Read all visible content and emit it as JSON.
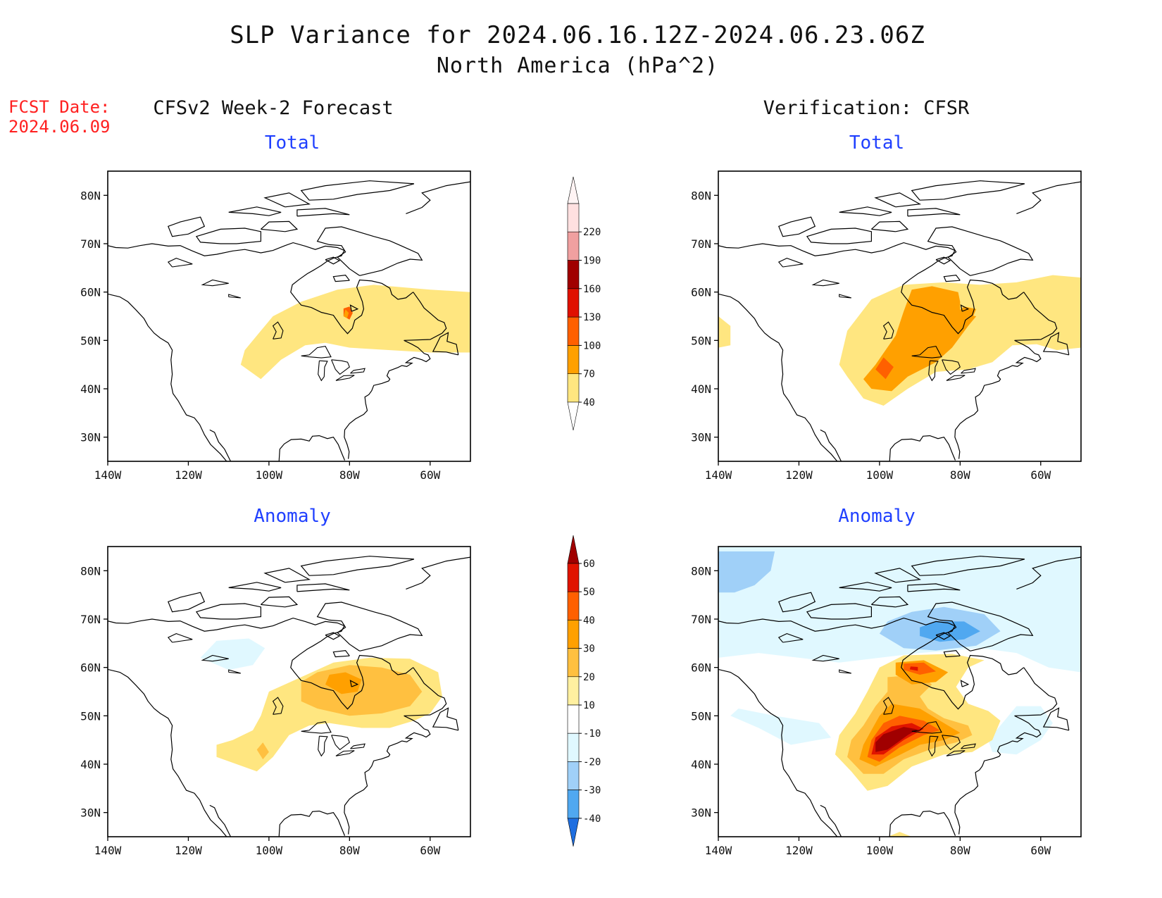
{
  "title": {
    "line1": "SLP Variance for 2024.06.16.12Z-2024.06.23.06Z",
    "line2": "North America (hPa^2)"
  },
  "fcst": {
    "label": "FCST Date:",
    "date": "2024.06.09"
  },
  "columns": {
    "left": {
      "heading": "CFSv2 Week-2 Forecast"
    },
    "right": {
      "heading": "Verification: CFSR"
    }
  },
  "panels": [
    {
      "id": "fcst_total",
      "subtitle": "Total"
    },
    {
      "id": "verif_total",
      "subtitle": "Total"
    },
    {
      "id": "fcst_anom",
      "subtitle": "Anomaly"
    },
    {
      "id": "verif_anom",
      "subtitle": "Anomaly"
    }
  ],
  "axes": {
    "lat_labels": [
      "80N",
      "70N",
      "60N",
      "50N",
      "40N",
      "30N"
    ],
    "lat_values": [
      80,
      70,
      60,
      50,
      40,
      30
    ],
    "lon_labels": [
      "140W",
      "120W",
      "100W",
      "80W",
      "60W"
    ],
    "lon_values": [
      -140,
      -120,
      -100,
      -80,
      -60
    ],
    "lon_range": [
      -140,
      -50
    ],
    "lat_range": [
      25,
      85
    ]
  },
  "colorbars": {
    "total": {
      "labels": [
        "40",
        "70",
        "100",
        "130",
        "160",
        "190",
        "220"
      ],
      "colors": [
        "#ffe680",
        "#ffa000",
        "#ff6000",
        "#e01000",
        "#a00000",
        "#f0a0a0",
        "#ffe0e0"
      ]
    },
    "anomaly": {
      "labels": [
        "60",
        "50",
        "40",
        "30",
        "20",
        "10",
        "-10",
        "-20",
        "-30",
        "-40"
      ],
      "colors": [
        "#a00000",
        "#e01400",
        "#ff6000",
        "#ffa000",
        "#ffc040",
        "#fff0a0",
        "#ffffff",
        "#e0f8ff",
        "#a0d0f8",
        "#50a8f0",
        "#1e6ee0"
      ]
    }
  },
  "colors": {
    "yellow": "#ffe680",
    "lightorange": "#ffc040",
    "orange": "#ffa000",
    "darkorange": "#ff6000",
    "red": "#e01400",
    "darkred": "#a00000",
    "cyan": "#e0f8ff",
    "lightblue": "#a0d0f8",
    "blue": "#50a8f0",
    "darkblue": "#1e6ee0"
  }
}
